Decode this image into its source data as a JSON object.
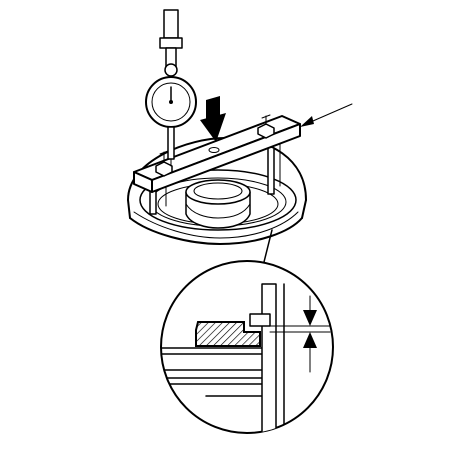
{
  "figure": {
    "labels": [],
    "colors": {
      "line": "#000000",
      "background": "#ffffff",
      "hatch": "#000000"
    },
    "icons": [
      "dial-indicator-icon",
      "down-arrow-icon",
      "callout-arrow-icon",
      "measurement-arrows-icon"
    ]
  }
}
